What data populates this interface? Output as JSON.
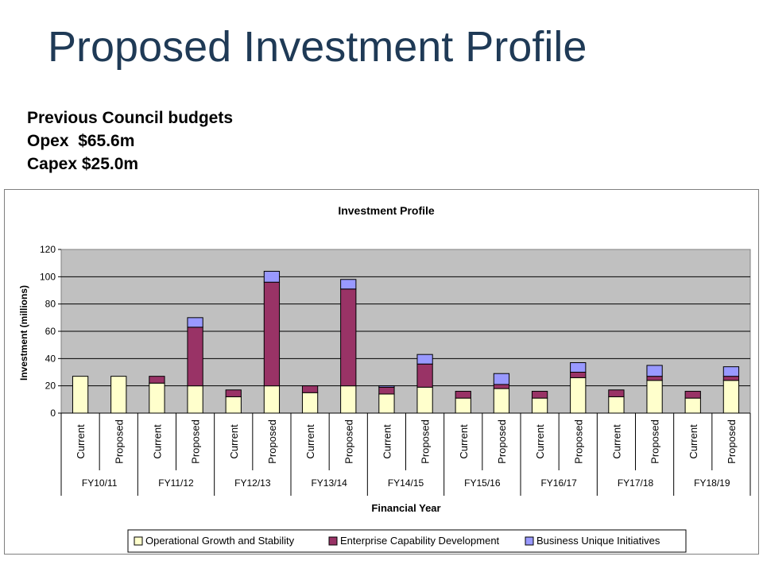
{
  "slide": {
    "title": "Proposed Investment Profile",
    "info_lines": [
      "Previous Council budgets",
      "Opex  $65.6m",
      "Capex $25.0m"
    ]
  },
  "colors": {
    "operational": "#ffffcc",
    "enterprise": "#993366",
    "business": "#9999ff",
    "plot_bg": "#c0c0c0"
  },
  "chart_data": {
    "type": "bar",
    "stacked": true,
    "title": "Investment  Profile",
    "xlabel": "Financial Year",
    "ylabel": "Investment (millions)",
    "ylim": [
      0,
      120
    ],
    "yticks": [
      0,
      20,
      40,
      60,
      80,
      100,
      120
    ],
    "grid": true,
    "legend": "bottom",
    "groups": [
      "FY10/11",
      "FY11/12",
      "FY12/13",
      "FY13/14",
      "FY14/15",
      "FY15/16",
      "FY16/17",
      "FY17/18",
      "FY18/19"
    ],
    "categories": [
      "Current",
      "Proposed",
      "Current",
      "Proposed",
      "Current",
      "Proposed",
      "Current",
      "Proposed",
      "Current",
      "Proposed",
      "Current",
      "Proposed",
      "Current",
      "Proposed",
      "Current",
      "Proposed",
      "Current",
      "Proposed"
    ],
    "series": [
      {
        "name": "Operational Growth and Stability",
        "values": [
          27,
          27,
          22,
          20,
          12,
          20,
          15,
          20,
          14,
          19,
          11,
          18,
          11,
          26,
          12,
          24,
          11,
          24
        ]
      },
      {
        "name": "Enterprise Capability Development",
        "values": [
          0,
          0,
          5,
          43,
          5,
          76,
          5,
          71,
          5,
          17,
          5,
          3,
          5,
          4,
          5,
          3,
          5,
          3
        ]
      },
      {
        "name": "Business Unique Initiatives",
        "values": [
          0,
          0,
          0,
          7,
          0,
          8,
          0,
          7,
          1,
          7,
          0,
          8,
          0,
          7,
          0,
          8,
          0,
          7
        ]
      }
    ]
  }
}
